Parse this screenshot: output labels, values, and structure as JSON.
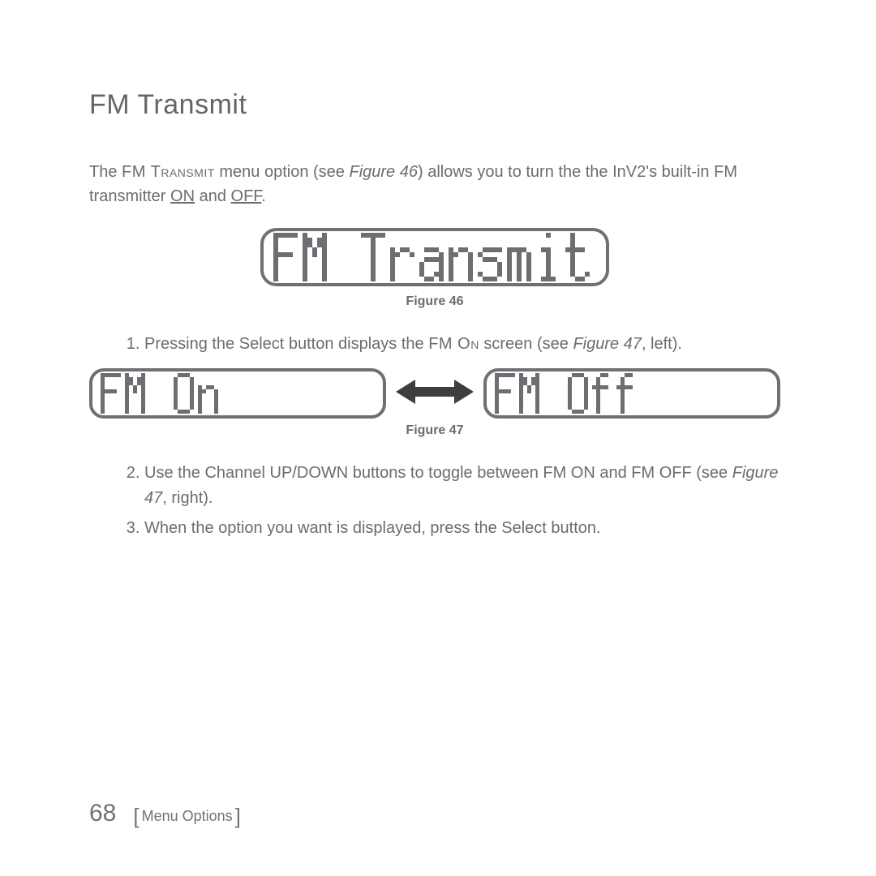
{
  "colors": {
    "text": "#646466",
    "body": "#6b6c6e",
    "pixel": "#6c6e71",
    "border": "#6e7073",
    "bg": "#ffffff"
  },
  "heading": "FM Transmit",
  "intro_parts": {
    "a": "The ",
    "fm_transmit": "FM Transmit",
    "b": " menu option (see ",
    "fig46": "Figure 46",
    "c": ") allows you to turn the the InV2's built-in FM transmitter ",
    "on": "ON",
    "d": " and ",
    "off": "OFF",
    "e": "."
  },
  "fig46": {
    "caption": "Figure 46",
    "text": "FM Transmit",
    "px": 6,
    "border_radius": 20
  },
  "step1": {
    "a": "Pressing the Select button displays the ",
    "fm_on": "FM On",
    "b": " screen (see ",
    "fig47": "Figure 47",
    "c": ", left)."
  },
  "fig47": {
    "caption": "Figure 47",
    "left_text": "FM On",
    "right_text": "FM Off",
    "px": 5,
    "arrow_color": "#3d3e40"
  },
  "step2": {
    "a": "Use the Channel UP/DOWN buttons to toggle between FM ON and FM OFF (see ",
    "fig47": "Figure 47",
    "b": ", right)."
  },
  "step3": "When the option you want is displayed, press the Select button.",
  "footer": {
    "page": "68",
    "section": "Menu Options"
  }
}
